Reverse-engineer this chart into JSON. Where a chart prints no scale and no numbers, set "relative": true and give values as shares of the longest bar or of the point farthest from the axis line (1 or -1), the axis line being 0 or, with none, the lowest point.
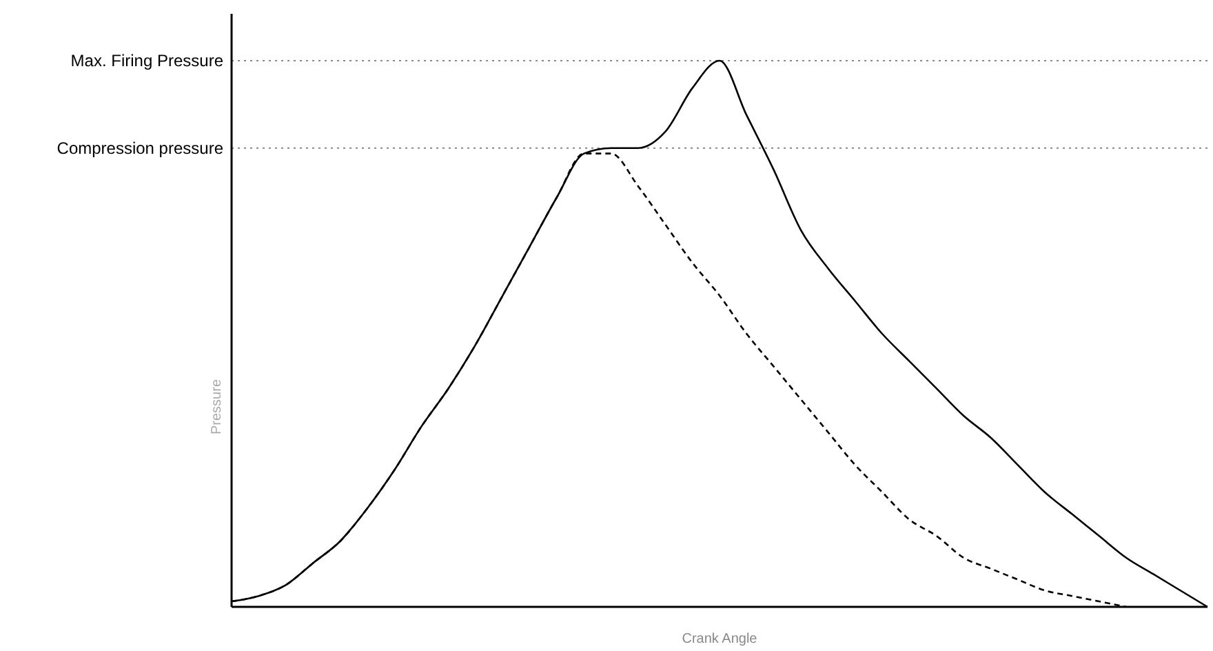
{
  "chart_data": {
    "type": "line",
    "relative": true,
    "xlabel": "Crank Angle",
    "ylabel": "Pressure",
    "marker": "none",
    "categories": [
      null,
      null,
      null,
      null,
      null,
      null,
      null,
      null,
      null,
      null,
      null,
      null,
      null,
      null,
      null,
      null,
      null,
      null,
      null,
      null,
      null,
      null,
      null,
      null,
      null,
      null,
      null,
      null,
      null,
      null,
      null,
      null,
      null,
      null,
      null,
      null,
      null
    ],
    "series": [
      {
        "color": "#000000",
        "line_style": "solid",
        "values": [
          0.01,
          0.02,
          0.04,
          0.08,
          0.12,
          0.18,
          0.25,
          0.33,
          0.4,
          0.48,
          0.57,
          0.66,
          0.75,
          0.83,
          0.84,
          0.84,
          0.87,
          0.95,
          1,
          0.9,
          0.8,
          0.69,
          0.62,
          0.56,
          0.5,
          0.45,
          0.4,
          0.35,
          0.31,
          0.26,
          0.21,
          0.17,
          0.13,
          0.09,
          0.06,
          0.03,
          0
        ]
      },
      {
        "color": "#000000",
        "line_style": "dashed",
        "values": [
          0.01,
          0.02,
          0.04,
          0.08,
          0.12,
          0.18,
          0.25,
          0.33,
          0.4,
          0.48,
          0.57,
          0.66,
          0.75,
          0.83,
          0.83,
          0.77,
          0.7,
          0.63,
          0.57,
          0.5,
          0.44,
          0.38,
          0.32,
          0.26,
          0.21,
          0.16,
          0.13,
          0.09,
          0.07,
          0.05,
          0.03,
          0.02,
          0.01,
          0,
          null,
          null,
          null
        ]
      }
    ],
    "ref_lines": [
      {
        "axis": "y",
        "value": 1,
        "label": "Max. Firing  Pressure",
        "color": "#888888",
        "line_style": "dotted"
      },
      {
        "axis": "y",
        "value": 0.84,
        "label": "Compression pressure",
        "color": "#888888",
        "line_style": "dotted"
      }
    ]
  }
}
